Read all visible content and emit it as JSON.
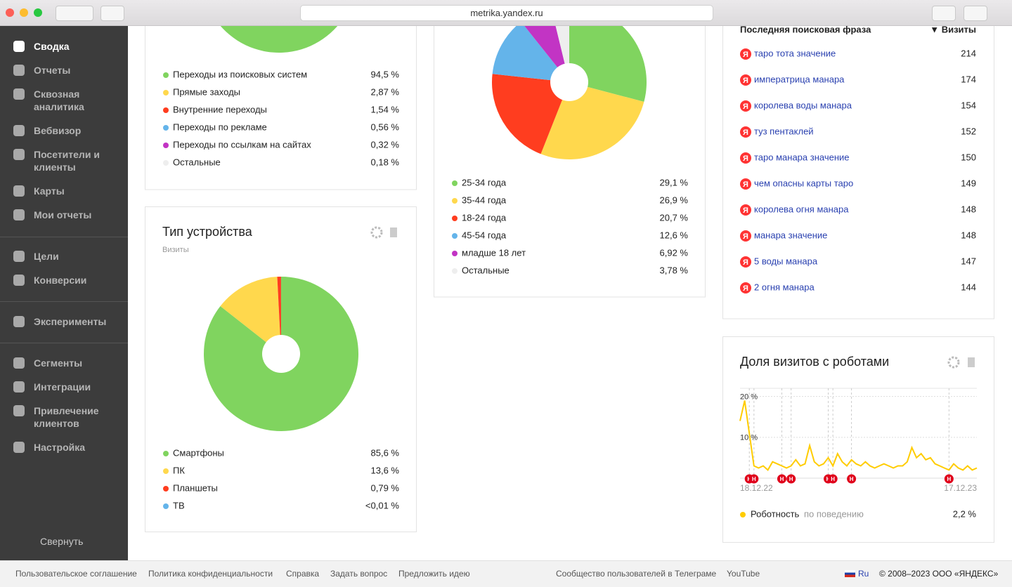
{
  "browser": {
    "url": "metrika.yandex.ru"
  },
  "sidebar": {
    "items": [
      "Сводка",
      "Отчеты",
      "Сквозная аналитика",
      "Вебвизор",
      "Посетители и клиенты",
      "Карты",
      "Мои отчеты",
      "Цели",
      "Конверсии",
      "Эксперименты",
      "Сегменты",
      "Интеграции",
      "Привлечение клиентов",
      "Настройка"
    ],
    "collapse": "Свернуть"
  },
  "traffic": {
    "type": "pie",
    "categories": [
      "Переходы из поисковых систем",
      "Прямые заходы",
      "Внутренние переходы",
      "Переходы по рекламе",
      "Переходы по ссылкам на сайтах",
      "Остальные"
    ],
    "values": [
      94.5,
      2.87,
      1.54,
      0.56,
      0.32,
      0.18
    ],
    "value_labels": [
      "94,5 %",
      "2,87 %",
      "1,54 %",
      "0,56 %",
      "0,32 %",
      "0,18 %"
    ],
    "colors": [
      "#80d45f",
      "#ffd84d",
      "#ff3d1f",
      "#64b4ea",
      "#c234c4",
      "#eeeeee"
    ]
  },
  "age": {
    "type": "pie",
    "categories": [
      "25-34 года",
      "35-44 года",
      "18-24 года",
      "45-54 года",
      "младше 18 лет",
      "Остальные"
    ],
    "values": [
      29.1,
      26.9,
      20.7,
      12.6,
      6.92,
      3.78
    ],
    "value_labels": [
      "29,1 %",
      "26,9 %",
      "20,7 %",
      "12,6 %",
      "6,92 %",
      "3,78 %"
    ],
    "colors": [
      "#80d45f",
      "#ffd84d",
      "#ff3d1f",
      "#64b4ea",
      "#c234c4",
      "#eeeeee"
    ]
  },
  "device": {
    "title": "Тип устройства",
    "subtitle": "Визиты",
    "type": "pie",
    "categories": [
      "Смартфоны",
      "ПК",
      "Планшеты",
      "ТВ"
    ],
    "values": [
      85.6,
      13.6,
      0.79,
      0.01
    ],
    "value_labels": [
      "85,6 %",
      "13,6 %",
      "0,79 %",
      "<0,01 %"
    ],
    "colors": [
      "#80d45f",
      "#ffd84d",
      "#ff3d1f",
      "#64b4ea"
    ]
  },
  "search_phrases": {
    "columns": [
      "Последняя поисковая фраза",
      "▼ Визиты"
    ],
    "icon": "Я",
    "rows": [
      [
        "таро тота значение",
        214
      ],
      [
        "императрица манара",
        174
      ],
      [
        "королева воды манара",
        154
      ],
      [
        "туз пентаклей",
        152
      ],
      [
        "таро манара значение",
        150
      ],
      [
        "чем опасны карты таро",
        149
      ],
      [
        "королева огня манара",
        148
      ],
      [
        "манара значение",
        148
      ],
      [
        "5 воды манара",
        147
      ],
      [
        "2 огня манара",
        144
      ]
    ]
  },
  "robots": {
    "title": "Доля визитов с роботами",
    "chart": {
      "type": "line",
      "categories": [
        "18.12.22",
        null,
        null,
        null,
        null,
        null,
        null,
        null,
        null,
        null,
        null,
        null,
        null,
        null,
        null,
        null,
        null,
        null,
        null,
        null,
        null,
        null,
        null,
        null,
        null,
        null,
        null,
        null,
        null,
        null,
        null,
        null,
        null,
        null,
        null,
        null,
        null,
        null,
        null,
        null,
        null,
        null,
        null,
        null,
        null,
        null,
        null,
        null,
        null,
        null,
        null,
        "17.12.23"
      ],
      "series": [
        {
          "name": "Роботность",
          "color": "#ffcc00",
          "values": [
            14,
            19,
            11,
            3,
            2.5,
            3,
            2,
            4,
            3.5,
            3,
            2.5,
            3,
            4.5,
            3,
            3.5,
            8,
            4,
            3,
            3.5,
            5,
            3,
            6,
            4,
            3,
            4.5,
            3.5,
            3,
            4,
            3,
            2.5,
            3,
            3.5,
            3,
            2.5,
            3,
            3,
            4,
            7.5,
            5,
            6,
            4.5,
            5,
            3.5,
            3,
            2.5,
            2,
            3.5,
            2.5,
            2,
            3,
            2,
            2.5
          ]
        }
      ],
      "ylim": [
        0,
        22
      ],
      "yticks": [
        {
          "value": 10,
          "label": "10 %"
        },
        {
          "value": 20,
          "label": "20 %"
        }
      ],
      "grid": true,
      "annotations": {
        "label": "Н",
        "x": [
          2,
          3,
          9,
          11,
          19,
          20,
          24,
          45
        ]
      }
    },
    "legend": {
      "note": "по поведению",
      "value": 2.2,
      "value_label": "2,2 %"
    }
  },
  "footer": {
    "links": [
      "Пользовательское соглашение",
      "Политика конфиденциальности",
      "Справка",
      "Задать вопрос",
      "Предложить идею",
      "Сообщество пользователей в Телеграме",
      "YouTube"
    ],
    "language": "Ru",
    "copyright": "© 2008–2023 ООО «ЯНДЕКС»"
  }
}
